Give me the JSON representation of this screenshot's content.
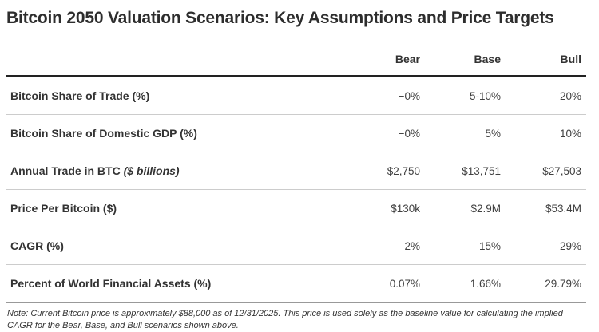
{
  "title": "Bitcoin 2050 Valuation Scenarios: Key Assumptions and Price Targets",
  "chart_data": {
    "type": "table",
    "title": "Bitcoin 2050 Valuation Scenarios: Key Assumptions and Price Targets",
    "columns": [
      "Bear",
      "Base",
      "Bull"
    ],
    "rows": [
      {
        "label": "Bitcoin Share of Trade (%)",
        "label_suffix": "",
        "bear": "−0%",
        "base": "5-10%",
        "bull": "20%"
      },
      {
        "label": "Bitcoin Share of Domestic GDP (%)",
        "label_suffix": "",
        "bear": "−0%",
        "base": "5%",
        "bull": "10%"
      },
      {
        "label": "Annual Trade in BTC",
        "label_suffix": " ($ billions)",
        "bear": "$2,750",
        "base": "$13,751",
        "bull": "$27,503"
      },
      {
        "label": "Price Per Bitcoin ($)",
        "label_suffix": "",
        "bear": "$130k",
        "base": "$2.9M",
        "bull": "$53.4M"
      },
      {
        "label": "CAGR (%)",
        "label_suffix": "",
        "bear": "2%",
        "base": "15%",
        "bull": "29%"
      },
      {
        "label": "Percent of World Financial Assets (%)",
        "label_suffix": "",
        "bear": "0.07%",
        "base": "1.66%",
        "bull": "29.79%"
      }
    ]
  },
  "note": "Note: Current Bitcoin price is approximately $88,000 as of 12/31/2025. This price is used solely as the baseline value for calculating the implied CAGR for the Bear, Base, and Bull scenarios shown above.",
  "colors": {
    "title_text": "#2d2d2d",
    "header_border": "#222222",
    "row_separator": "#cccccc",
    "bottom_border": "#999999",
    "body_text": "#3a3a3a"
  }
}
